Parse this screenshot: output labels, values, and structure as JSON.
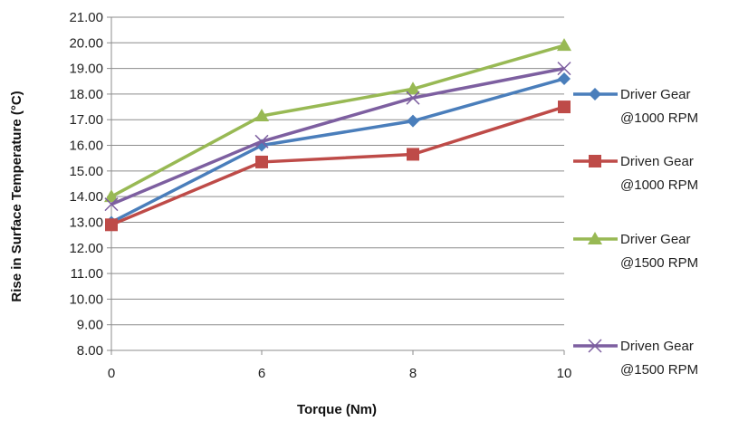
{
  "chart_data": {
    "type": "line",
    "title": "",
    "xlabel": "Torque (Nm)",
    "ylabel": "Rise in Surface Temperature (°C)",
    "categories": [
      "0",
      "6",
      "8",
      "10"
    ],
    "ylim": [
      8,
      21
    ],
    "ytick_step": 1,
    "ytick_labels": [
      "8.00",
      "9.00",
      "10.00",
      "11.00",
      "12.00",
      "13.00",
      "14.00",
      "15.00",
      "16.00",
      "17.00",
      "18.00",
      "19.00",
      "20.00",
      "21.00"
    ],
    "grid": true,
    "legend_position": "right",
    "series": [
      {
        "name_line1": "Driver Gear",
        "name_line2": "@1000 RPM",
        "color": "#4a7ebb",
        "marker": "diamond",
        "values": [
          13.0,
          16.0,
          16.95,
          18.6
        ]
      },
      {
        "name_line1": "Driven Gear",
        "name_line2": "@1000 RPM",
        "color": "#be4b48",
        "marker": "square",
        "values": [
          12.9,
          15.35,
          15.65,
          17.5
        ]
      },
      {
        "name_line1": "Driver Gear",
        "name_line2": "@1500 RPM",
        "color": "#98b954",
        "marker": "triangle",
        "values": [
          14.0,
          17.15,
          18.2,
          19.9
        ]
      },
      {
        "name_line1": "Driven Gear",
        "name_line2": "@1500 RPM",
        "color": "#7d5fa0",
        "marker": "x",
        "values": [
          13.7,
          16.15,
          17.85,
          19.0
        ]
      }
    ]
  }
}
